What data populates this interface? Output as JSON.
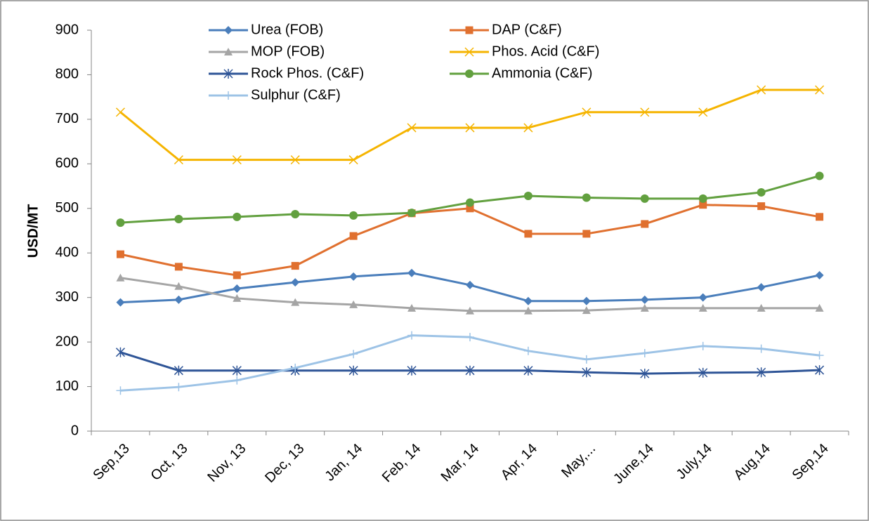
{
  "chart_data": {
    "type": "line",
    "y_label": "USD/MT",
    "categories": [
      "Sep,13",
      "Oct, 13",
      "Nov, 13",
      "Dec, 13",
      "Jan, 14",
      "Feb, 14",
      "Mar, 14",
      "Apr, 14",
      "May,...",
      "June,14",
      "July,14",
      "Aug,14",
      "Sep,14"
    ],
    "series": [
      {
        "name": "Urea (FOB)",
        "color": "#4a7ebb",
        "marker": "diamond",
        "values": [
          289,
          295,
          320,
          334,
          347,
          355,
          328,
          292,
          292,
          295,
          300,
          323,
          350
        ]
      },
      {
        "name": "DAP (C&F)",
        "color": "#e0702f",
        "marker": "square",
        "values": [
          397,
          369,
          350,
          371,
          438,
          489,
          500,
          443,
          443,
          465,
          508,
          505,
          481
        ]
      },
      {
        "name": "MOP (FOB)",
        "color": "#a5a5a5",
        "marker": "triangle",
        "values": [
          344,
          325,
          298,
          289,
          284,
          276,
          270,
          270,
          271,
          276,
          276,
          276,
          276
        ]
      },
      {
        "name": "Phos. Acid (C&F)",
        "color": "#f5b400",
        "marker": "x",
        "values": [
          716,
          609,
          609,
          609,
          609,
          681,
          681,
          681,
          716,
          716,
          716,
          766,
          766
        ]
      },
      {
        "name": "Rock Phos. (C&F)",
        "color": "#2f5597",
        "marker": "star",
        "values": [
          177,
          136,
          136,
          136,
          136,
          136,
          136,
          136,
          132,
          129,
          131,
          132,
          137
        ]
      },
      {
        "name": "Ammonia (C&F)",
        "color": "#62a03f",
        "marker": "circle",
        "values": [
          468,
          476,
          481,
          487,
          484,
          490,
          513,
          528,
          524,
          522,
          522,
          536,
          573
        ]
      },
      {
        "name": "Sulphur (C&F)",
        "color": "#9dc3e6",
        "marker": "plus",
        "values": [
          91,
          99,
          114,
          142,
          173,
          215,
          211,
          180,
          161,
          175,
          191,
          185,
          170
        ]
      }
    ],
    "ylim": [
      0,
      900
    ],
    "yticks": [
      0,
      100,
      200,
      300,
      400,
      500,
      600,
      700,
      800,
      900
    ],
    "grid": false,
    "legend": "top"
  }
}
